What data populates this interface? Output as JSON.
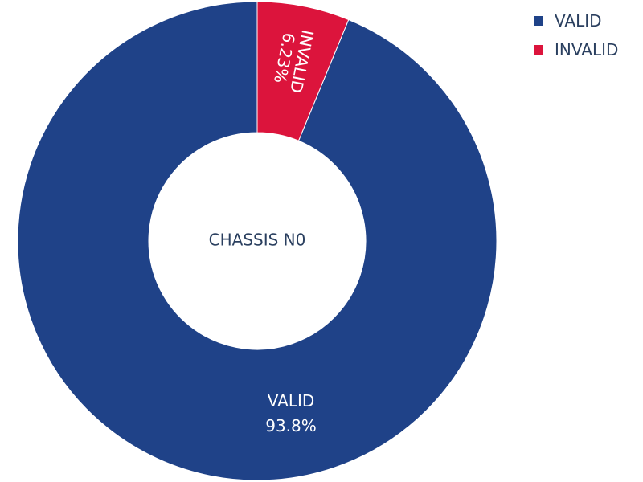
{
  "chart_data": {
    "type": "pie",
    "hole": true,
    "center_label": "CHASSIS N0",
    "slices": [
      {
        "label": "VALID",
        "value": 93.77,
        "percent_text": "93.8%",
        "color": "#1f4288"
      },
      {
        "label": "INVALID",
        "value": 6.23,
        "percent_text": "6.23%",
        "color": "#dc143c"
      }
    ],
    "legend": {
      "placement": "top-right",
      "items": [
        {
          "label": "VALID",
          "color": "#1f4288"
        },
        {
          "label": "INVALID",
          "color": "#dc143c"
        }
      ]
    }
  }
}
